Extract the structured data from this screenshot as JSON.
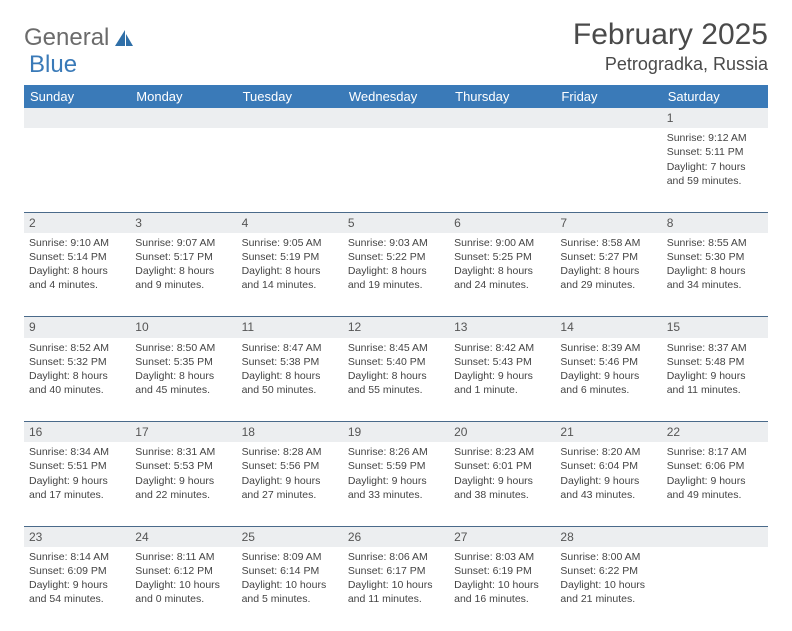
{
  "logo": {
    "text1": "General",
    "text2": "Blue"
  },
  "title": "February 2025",
  "location": "Petrogradka, Russia",
  "colors": {
    "header_bg": "#3a7ab8",
    "header_fg": "#ffffff",
    "rule": "#4a6a8a",
    "daynum_bg": "#eceef0",
    "text": "#444444",
    "logo_gray": "#6b6b6b",
    "logo_blue": "#3a7ab8"
  },
  "weekdays": [
    "Sunday",
    "Monday",
    "Tuesday",
    "Wednesday",
    "Thursday",
    "Friday",
    "Saturday"
  ],
  "weeks": [
    [
      null,
      null,
      null,
      null,
      null,
      null,
      {
        "n": "1",
        "sr": "9:12 AM",
        "ss": "5:11 PM",
        "dl": "7 hours and 59 minutes."
      }
    ],
    [
      {
        "n": "2",
        "sr": "9:10 AM",
        "ss": "5:14 PM",
        "dl": "8 hours and 4 minutes."
      },
      {
        "n": "3",
        "sr": "9:07 AM",
        "ss": "5:17 PM",
        "dl": "8 hours and 9 minutes."
      },
      {
        "n": "4",
        "sr": "9:05 AM",
        "ss": "5:19 PM",
        "dl": "8 hours and 14 minutes."
      },
      {
        "n": "5",
        "sr": "9:03 AM",
        "ss": "5:22 PM",
        "dl": "8 hours and 19 minutes."
      },
      {
        "n": "6",
        "sr": "9:00 AM",
        "ss": "5:25 PM",
        "dl": "8 hours and 24 minutes."
      },
      {
        "n": "7",
        "sr": "8:58 AM",
        "ss": "5:27 PM",
        "dl": "8 hours and 29 minutes."
      },
      {
        "n": "8",
        "sr": "8:55 AM",
        "ss": "5:30 PM",
        "dl": "8 hours and 34 minutes."
      }
    ],
    [
      {
        "n": "9",
        "sr": "8:52 AM",
        "ss": "5:32 PM",
        "dl": "8 hours and 40 minutes."
      },
      {
        "n": "10",
        "sr": "8:50 AM",
        "ss": "5:35 PM",
        "dl": "8 hours and 45 minutes."
      },
      {
        "n": "11",
        "sr": "8:47 AM",
        "ss": "5:38 PM",
        "dl": "8 hours and 50 minutes."
      },
      {
        "n": "12",
        "sr": "8:45 AM",
        "ss": "5:40 PM",
        "dl": "8 hours and 55 minutes."
      },
      {
        "n": "13",
        "sr": "8:42 AM",
        "ss": "5:43 PM",
        "dl": "9 hours and 1 minute."
      },
      {
        "n": "14",
        "sr": "8:39 AM",
        "ss": "5:46 PM",
        "dl": "9 hours and 6 minutes."
      },
      {
        "n": "15",
        "sr": "8:37 AM",
        "ss": "5:48 PM",
        "dl": "9 hours and 11 minutes."
      }
    ],
    [
      {
        "n": "16",
        "sr": "8:34 AM",
        "ss": "5:51 PM",
        "dl": "9 hours and 17 minutes."
      },
      {
        "n": "17",
        "sr": "8:31 AM",
        "ss": "5:53 PM",
        "dl": "9 hours and 22 minutes."
      },
      {
        "n": "18",
        "sr": "8:28 AM",
        "ss": "5:56 PM",
        "dl": "9 hours and 27 minutes."
      },
      {
        "n": "19",
        "sr": "8:26 AM",
        "ss": "5:59 PM",
        "dl": "9 hours and 33 minutes."
      },
      {
        "n": "20",
        "sr": "8:23 AM",
        "ss": "6:01 PM",
        "dl": "9 hours and 38 minutes."
      },
      {
        "n": "21",
        "sr": "8:20 AM",
        "ss": "6:04 PM",
        "dl": "9 hours and 43 minutes."
      },
      {
        "n": "22",
        "sr": "8:17 AM",
        "ss": "6:06 PM",
        "dl": "9 hours and 49 minutes."
      }
    ],
    [
      {
        "n": "23",
        "sr": "8:14 AM",
        "ss": "6:09 PM",
        "dl": "9 hours and 54 minutes."
      },
      {
        "n": "24",
        "sr": "8:11 AM",
        "ss": "6:12 PM",
        "dl": "10 hours and 0 minutes."
      },
      {
        "n": "25",
        "sr": "8:09 AM",
        "ss": "6:14 PM",
        "dl": "10 hours and 5 minutes."
      },
      {
        "n": "26",
        "sr": "8:06 AM",
        "ss": "6:17 PM",
        "dl": "10 hours and 11 minutes."
      },
      {
        "n": "27",
        "sr": "8:03 AM",
        "ss": "6:19 PM",
        "dl": "10 hours and 16 minutes."
      },
      {
        "n": "28",
        "sr": "8:00 AM",
        "ss": "6:22 PM",
        "dl": "10 hours and 21 minutes."
      },
      null
    ]
  ],
  "labels": {
    "sunrise": "Sunrise: ",
    "sunset": "Sunset: ",
    "daylight": "Daylight: "
  }
}
